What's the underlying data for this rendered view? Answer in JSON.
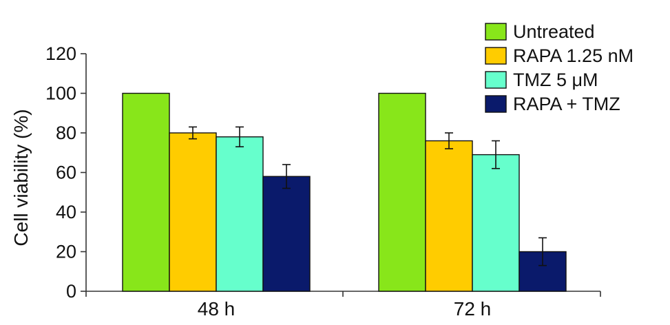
{
  "chart_data": {
    "type": "bar",
    "title": "",
    "xlabel": "",
    "ylabel": "Cell viability (%)",
    "ylim": [
      0,
      120
    ],
    "yticks": [
      0,
      20,
      40,
      60,
      80,
      100,
      120
    ],
    "categories": [
      "48 h",
      "72 h"
    ],
    "series": [
      {
        "name": "Untreated",
        "color": "#88e61a",
        "values": [
          100,
          100
        ],
        "errors": [
          0,
          0
        ]
      },
      {
        "name": "RAPA 1.25 nM",
        "color": "#ffcc00",
        "values": [
          80,
          76
        ],
        "errors": [
          3,
          4
        ]
      },
      {
        "name": "TMZ 5 μM",
        "color": "#66ffcc",
        "values": [
          78,
          69
        ],
        "errors": [
          5,
          7
        ]
      },
      {
        "name": "RAPA + TMZ",
        "color": "#0a1a6b",
        "values": [
          58,
          20
        ],
        "errors": [
          6,
          7
        ]
      }
    ],
    "legend": "top-right",
    "grid": false
  }
}
